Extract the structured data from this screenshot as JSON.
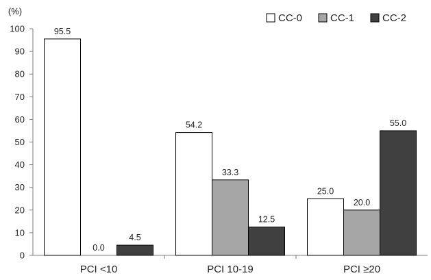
{
  "chart_data": {
    "type": "bar",
    "title": "",
    "xlabel": "",
    "ylabel": "(%)",
    "ylim": [
      0,
      100
    ],
    "yticks": [
      0,
      10,
      20,
      30,
      40,
      50,
      60,
      70,
      80,
      90,
      100
    ],
    "categories": [
      "PCI <10",
      "PCI 10-19",
      "PCI ≥20"
    ],
    "series": [
      {
        "name": "CC-0",
        "values": [
          95.5,
          54.2,
          25.0
        ],
        "labels": [
          "95.5",
          "54.2",
          "25.0"
        ],
        "color": "#ffffff"
      },
      {
        "name": "CC-1",
        "values": [
          0.0,
          33.3,
          20.0
        ],
        "labels": [
          "0.0",
          "33.3",
          "20.0"
        ],
        "color": "#a6a6a6"
      },
      {
        "name": "CC-2",
        "values": [
          4.5,
          12.5,
          55.0
        ],
        "labels": [
          "4.5",
          "12.5",
          "55.0"
        ],
        "color": "#404040"
      }
    ],
    "grid": false,
    "legend_position": "top-right",
    "bar_edge_color": "#000000"
  }
}
